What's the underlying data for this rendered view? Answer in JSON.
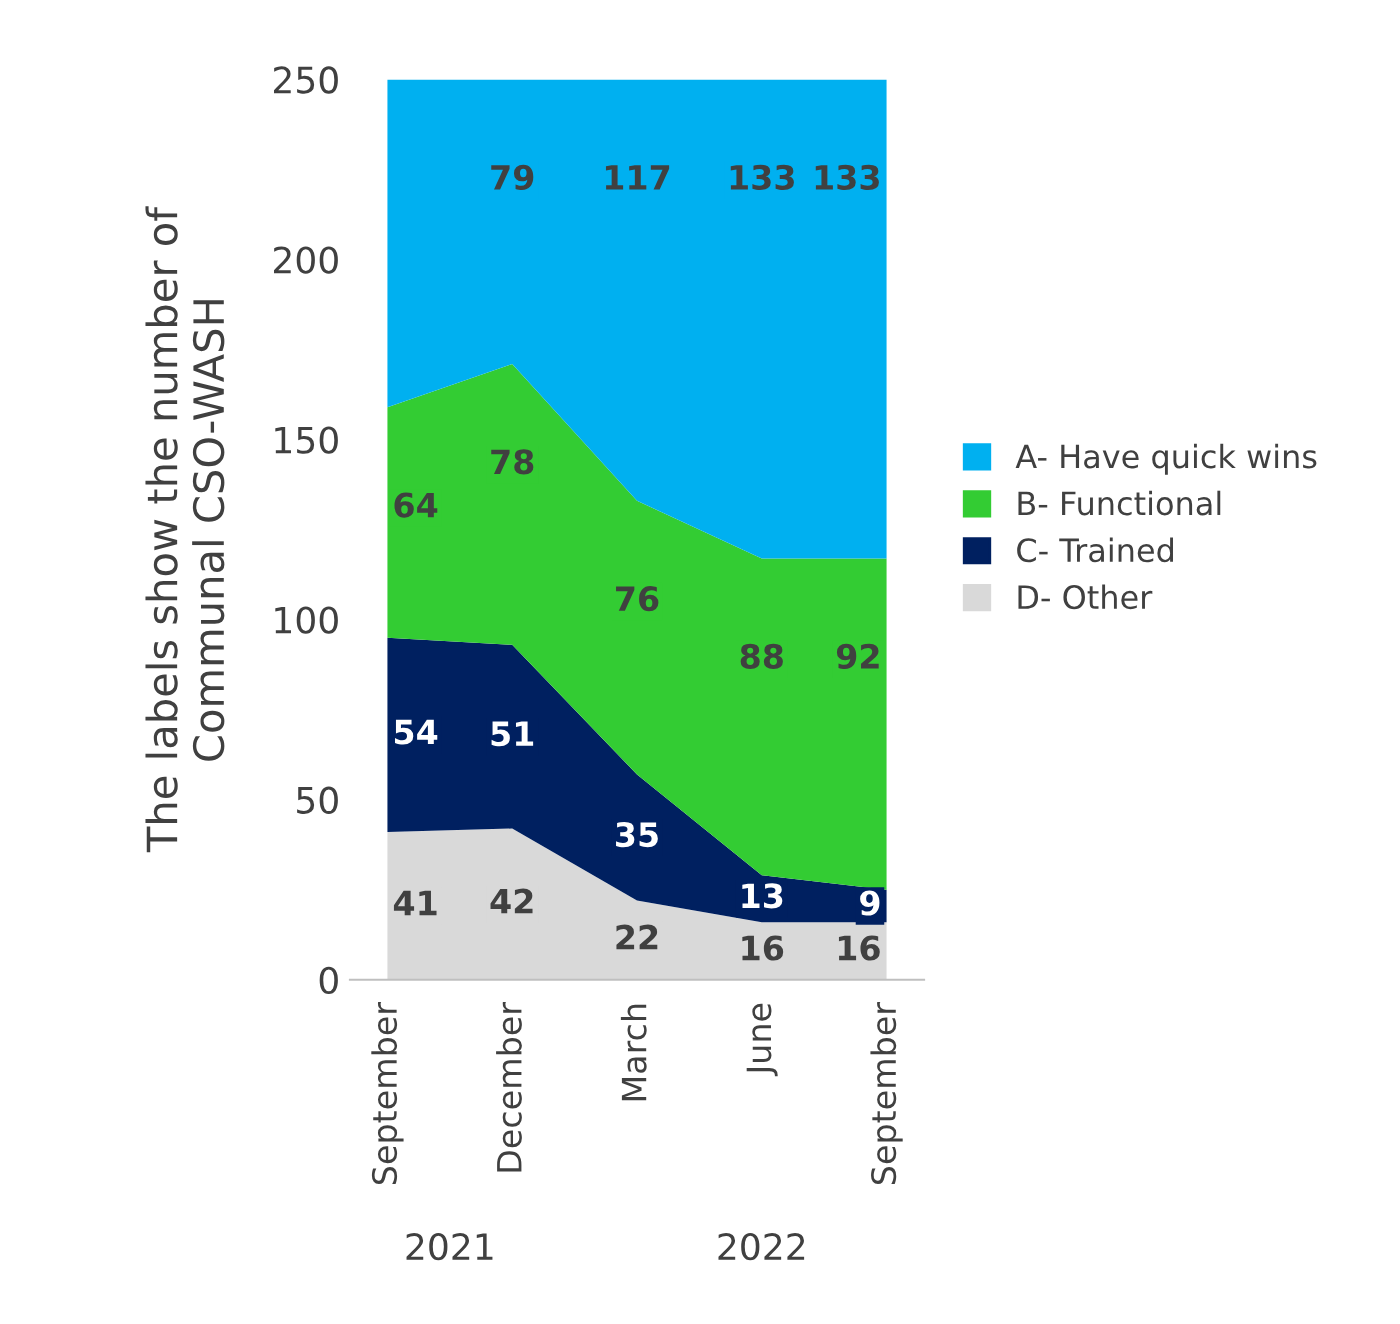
{
  "chart_data": {
    "type": "area",
    "stacked": true,
    "ylabel": "The labels show the number of\nCommunal CSO-WASH",
    "categories": [
      "September",
      "December",
      "March",
      "June",
      "September"
    ],
    "series": [
      {
        "name": "D- Other",
        "color": "#d9d9d9",
        "values": [
          41,
          42,
          22,
          16,
          16
        ],
        "value_labels": [
          "41",
          "42",
          "22",
          "16",
          "16"
        ]
      },
      {
        "name": "C- Trained",
        "color": "#002060",
        "values": [
          54,
          51,
          35,
          13,
          9
        ],
        "value_labels": [
          "54",
          "51",
          "35",
          "13",
          "9"
        ]
      },
      {
        "name": "B- Functional",
        "color": "#33cc33",
        "values": [
          64,
          78,
          76,
          88,
          92
        ],
        "value_labels": [
          "64",
          "78",
          "76",
          "88",
          "92"
        ]
      },
      {
        "name": "A- Have quick wins",
        "color": "#00b0f0",
        "values": [
          91,
          79,
          117,
          133,
          133
        ],
        "value_labels": [
          null,
          "79",
          "117",
          "133",
          "133"
        ]
      }
    ],
    "ylim": [
      0,
      250
    ],
    "yticks": [
      0,
      50,
      100,
      150,
      200,
      250
    ],
    "grid": false,
    "legend": "right",
    "annotations": [
      "2021",
      "2022"
    ]
  }
}
